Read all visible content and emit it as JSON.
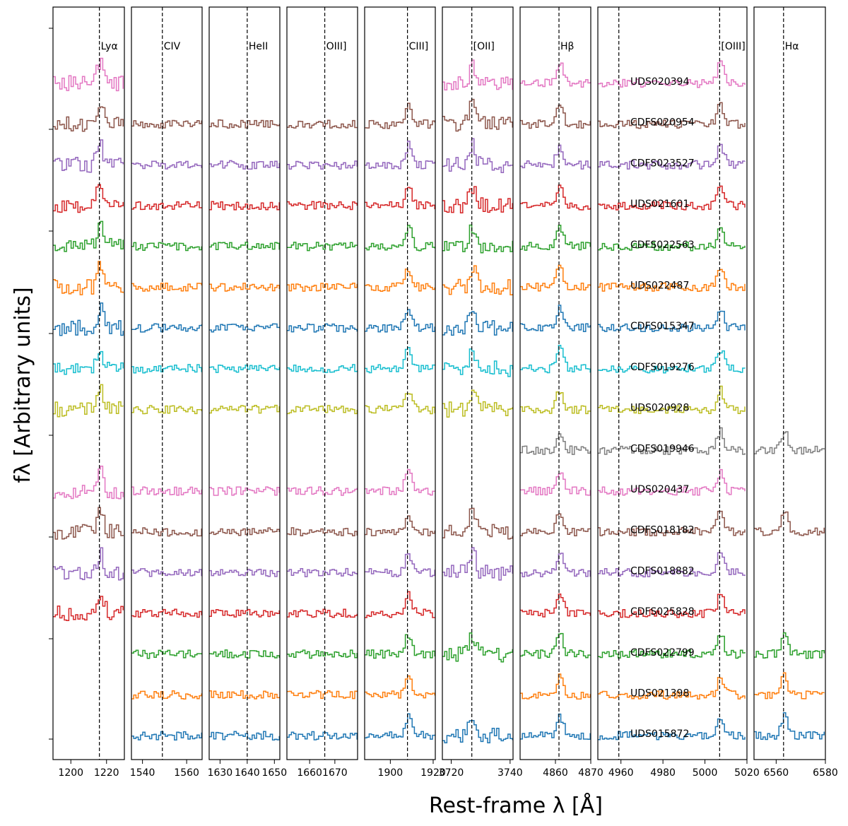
{
  "chart_data": {
    "type": "line",
    "ylabel": "fλ [Arbitrary units]",
    "xlabel": "Rest-frame λ [Å]",
    "panels": [
      {
        "line": "Lyα",
        "center": 1216,
        "xlim": [
          1190,
          1230
        ],
        "ticks": [
          1200,
          1220
        ]
      },
      {
        "line": "CIV",
        "center": 1549,
        "xlim": [
          1535,
          1567
        ],
        "ticks": [
          1540,
          1560
        ]
      },
      {
        "line": "HeII",
        "center": 1640,
        "xlim": [
          1626,
          1652
        ],
        "ticks": [
          1630,
          1640,
          1650
        ]
      },
      {
        "line": "OIII]",
        "center": 1666,
        "xlim": [
          1651,
          1679
        ],
        "ticks": [
          1660,
          1670
        ]
      },
      {
        "line": "CIII]",
        "center": 1908,
        "xlim": [
          1888,
          1921
        ],
        "ticks": [
          1900,
          1920
        ]
      },
      {
        "line": "[OII]",
        "center": 3727,
        "xlim": [
          3717,
          3741
        ],
        "ticks": [
          3720,
          3740
        ]
      },
      {
        "line": "Hβ",
        "center": 4861,
        "xlim": [
          4850,
          4870
        ],
        "ticks": [
          4860,
          4870
        ]
      },
      {
        "line": "[OIII]",
        "center": 5007,
        "xlim": [
          4949,
          5020
        ],
        "ticks": [
          4960,
          4980,
          5000,
          5020
        ],
        "extra_center": 4959
      },
      {
        "line": "Hα",
        "center": 6563,
        "xlim": [
          6551,
          6580
        ],
        "ticks": [
          6560,
          6580
        ]
      }
    ],
    "objects": [
      {
        "name": "UDS020394",
        "color": "#e377c2"
      },
      {
        "name": "CDFS020954",
        "color": "#8c564b"
      },
      {
        "name": "CDFS023527",
        "color": "#9467bd"
      },
      {
        "name": "UDS021601",
        "color": "#d62728"
      },
      {
        "name": "CDFS022563",
        "color": "#2ca02c"
      },
      {
        "name": "UDS022487",
        "color": "#ff7f0e"
      },
      {
        "name": "CDFS015347",
        "color": "#1f77b4"
      },
      {
        "name": "CDFS019276",
        "color": "#17becf"
      },
      {
        "name": "UDS020928",
        "color": "#bcbd22"
      },
      {
        "name": "CDFS019946",
        "color": "#7f7f7f"
      },
      {
        "name": "UDS020437",
        "color": "#e377c2"
      },
      {
        "name": "CDFS018182",
        "color": "#8c564b"
      },
      {
        "name": "CDFS018882",
        "color": "#9467bd"
      },
      {
        "name": "CDFS025828",
        "color": "#d62728"
      },
      {
        "name": "CDFS022799",
        "color": "#2ca02c"
      },
      {
        "name": "UDS021398",
        "color": "#ff7f0e"
      },
      {
        "name": "UDS015872",
        "color": "#1f77b4"
      }
    ]
  }
}
